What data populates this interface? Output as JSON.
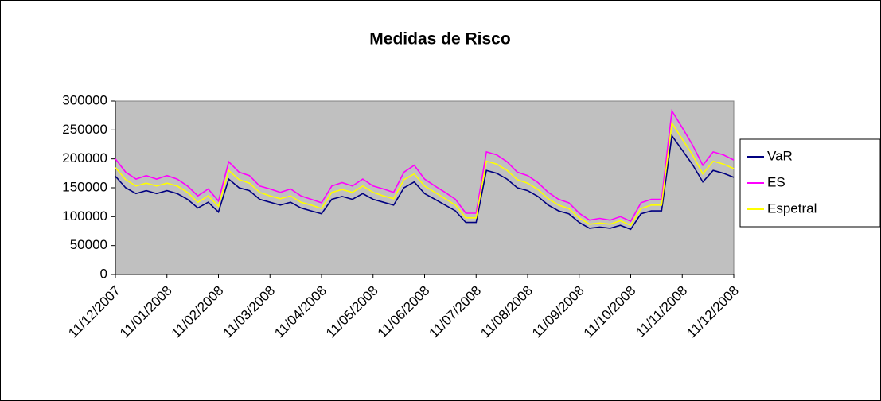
{
  "chart_data": {
    "type": "line",
    "title": "Medidas de Risco",
    "categories": [
      "11/12/2007",
      null,
      null,
      null,
      null,
      "11/01/2008",
      null,
      null,
      null,
      null,
      "11/02/2008",
      null,
      null,
      null,
      null,
      "11/03/2008",
      null,
      null,
      null,
      null,
      "11/04/2008",
      null,
      null,
      null,
      null,
      "11/05/2008",
      null,
      null,
      null,
      null,
      "11/06/2008",
      null,
      null,
      null,
      null,
      "11/07/2008",
      null,
      null,
      null,
      null,
      "11/08/2008",
      null,
      null,
      null,
      null,
      "11/09/2008",
      null,
      null,
      null,
      null,
      "11/10/2008",
      null,
      null,
      null,
      null,
      "11/11/2008",
      null,
      null,
      null,
      null,
      "11/12/2008"
    ],
    "series": [
      {
        "name": "VaR",
        "color": "#000080",
        "values": [
          170000,
          150000,
          140000,
          145000,
          140000,
          145000,
          140000,
          130000,
          115000,
          125000,
          108000,
          165000,
          150000,
          145000,
          130000,
          125000,
          120000,
          125000,
          115000,
          110000,
          105000,
          130000,
          135000,
          130000,
          140000,
          130000,
          125000,
          120000,
          150000,
          160000,
          140000,
          130000,
          120000,
          110000,
          90000,
          90000,
          180000,
          175000,
          165000,
          150000,
          145000,
          135000,
          120000,
          110000,
          105000,
          90000,
          80000,
          82000,
          80000,
          85000,
          78000,
          105000,
          110000,
          110000,
          240000,
          215000,
          190000,
          160000,
          180000,
          175000,
          168000
        ]
      },
      {
        "name": "ES",
        "color": "#ff00ff",
        "values": [
          200000,
          177000,
          165000,
          171000,
          165000,
          171000,
          165000,
          153000,
          136000,
          148000,
          127000,
          195000,
          177000,
          171000,
          153000,
          148000,
          142000,
          148000,
          136000,
          130000,
          124000,
          153000,
          159000,
          153000,
          165000,
          153000,
          148000,
          142000,
          177000,
          189000,
          165000,
          153000,
          142000,
          130000,
          106000,
          106000,
          212000,
          207000,
          195000,
          177000,
          171000,
          159000,
          142000,
          130000,
          124000,
          106000,
          94000,
          97000,
          94000,
          100000,
          92000,
          124000,
          130000,
          130000,
          283000,
          254000,
          224000,
          189000,
          212000,
          207000,
          198000
        ]
      },
      {
        "name": "Espetral",
        "color": "#ffff00",
        "values": [
          185000,
          164000,
          153000,
          158000,
          153000,
          158000,
          153000,
          142000,
          125000,
          136000,
          118000,
          180000,
          164000,
          158000,
          142000,
          136000,
          131000,
          136000,
          125000,
          120000,
          114000,
          142000,
          147000,
          142000,
          153000,
          142000,
          136000,
          131000,
          164000,
          174000,
          153000,
          142000,
          131000,
          120000,
          98000,
          98000,
          196000,
          191000,
          180000,
          164000,
          158000,
          147000,
          131000,
          120000,
          114000,
          98000,
          87000,
          89000,
          87000,
          93000,
          85000,
          114000,
          120000,
          120000,
          262000,
          234000,
          207000,
          174000,
          196000,
          191000,
          183000
        ]
      }
    ],
    "ylim": [
      0,
      300000
    ],
    "yticks": [
      0,
      50000,
      100000,
      150000,
      200000,
      250000,
      300000
    ],
    "legend": "right",
    "plot_background": "#c0c0c0"
  }
}
